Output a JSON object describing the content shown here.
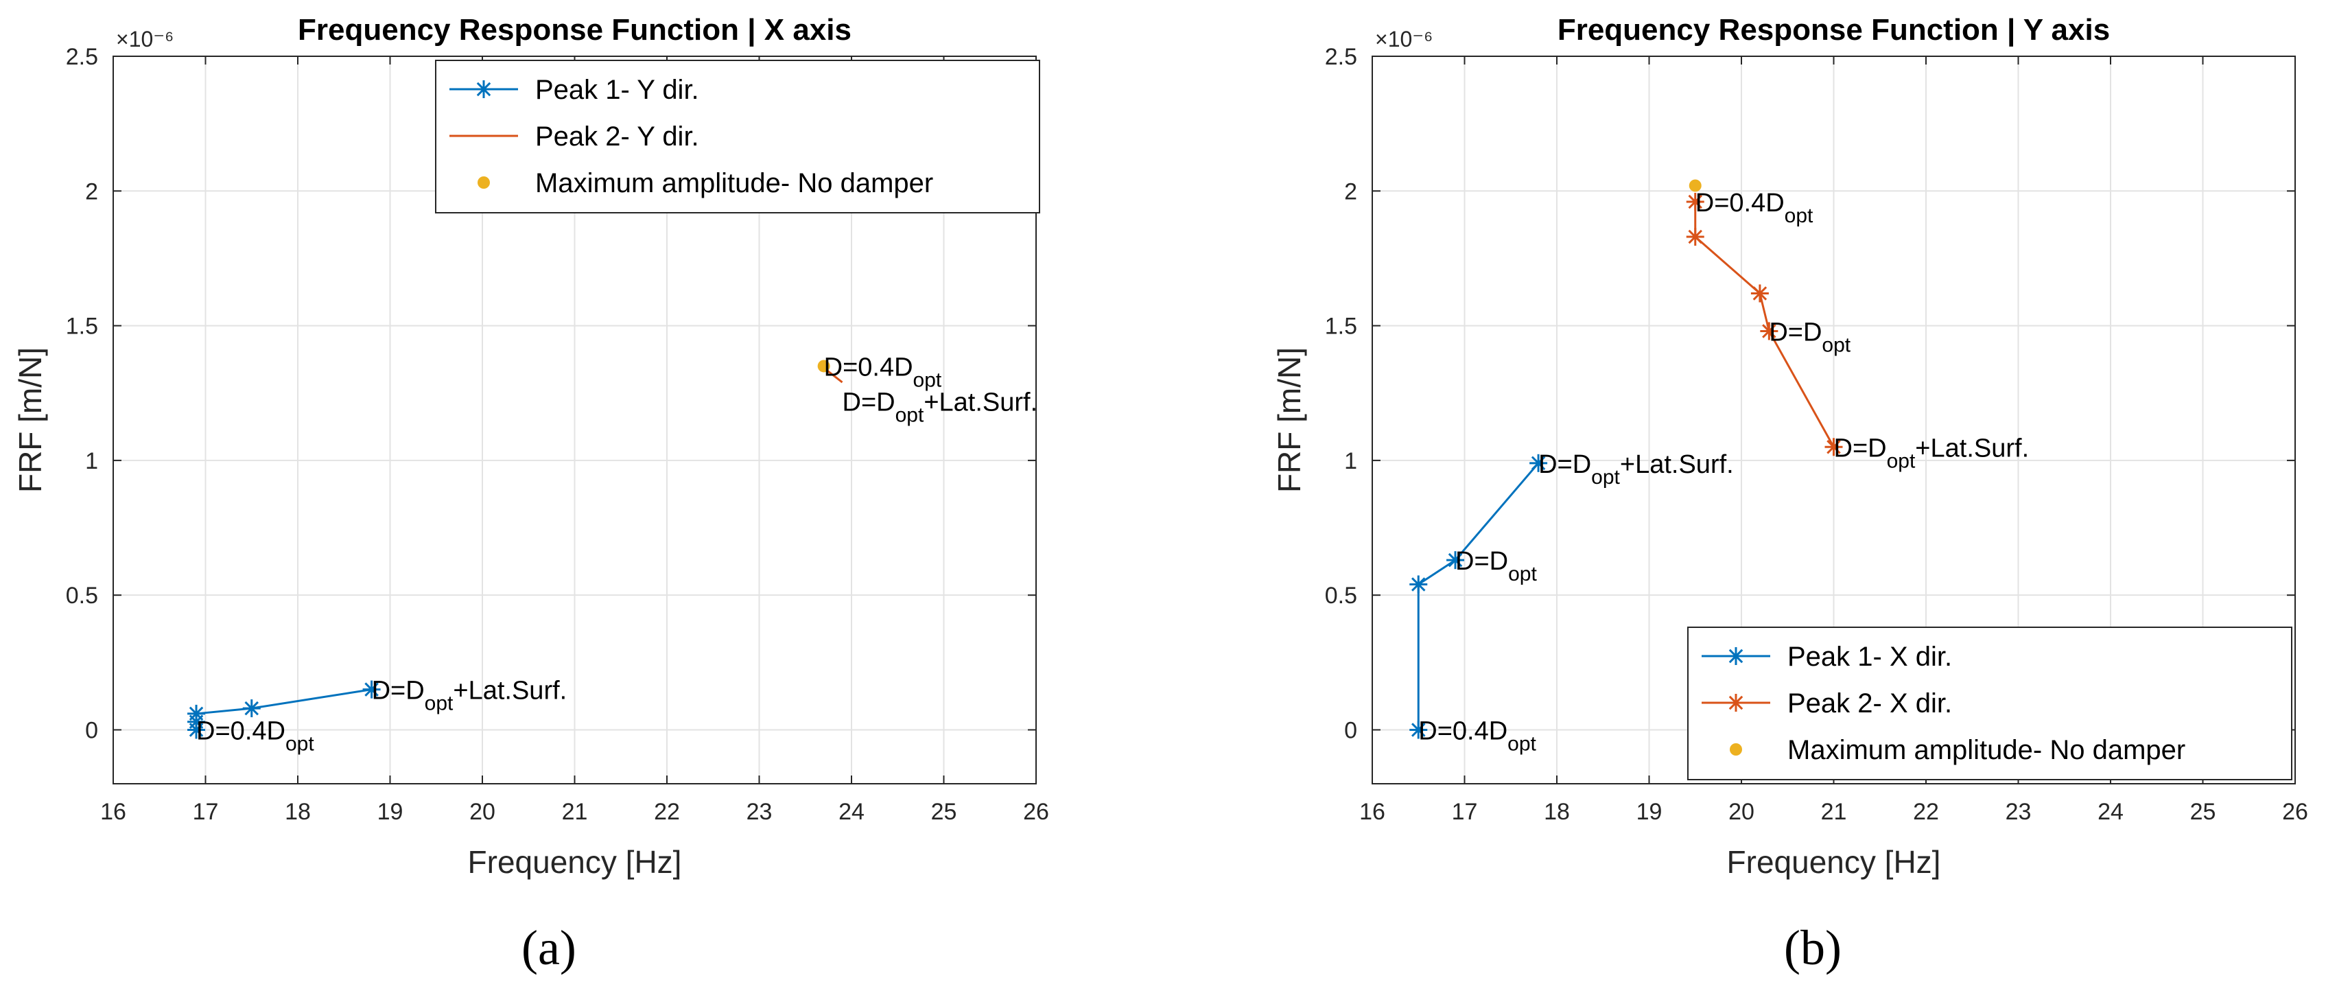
{
  "chart_data": [
    {
      "type": "line",
      "title": "Frequency Response Function | X axis",
      "xlabel": "Frequency [Hz]",
      "ylabel": "FRF [m/N]",
      "y_exponent": "×10⁻⁶",
      "xlim": [
        16,
        26
      ],
      "ylim": [
        -0.2,
        2.5
      ],
      "xticks": [
        16,
        17,
        18,
        19,
        20,
        21,
        22,
        23,
        24,
        25,
        26
      ],
      "yticks": [
        0,
        0.5,
        1,
        1.5,
        2,
        2.5
      ],
      "ytick_labels": [
        "0",
        "0.5",
        "1",
        "1.5",
        "2",
        "2.5"
      ],
      "grid": true,
      "legend_position": "top-right",
      "series": [
        {
          "name": "Peak 1- Y dir.",
          "style": "line-star",
          "color": "#0072BD",
          "x": [
            16.9,
            16.9,
            16.9,
            17.5,
            18.8
          ],
          "y": [
            0,
            0.03,
            0.06,
            0.08,
            0.15
          ]
        },
        {
          "name": "Peak 2- Y dir.",
          "style": "line",
          "color": "#D95319",
          "x": [
            23.7,
            23.75,
            23.9
          ],
          "y": [
            1.35,
            1.33,
            1.29
          ]
        },
        {
          "name": "Maximum amplitude- No damper",
          "style": "dot",
          "color": "#EDB120",
          "x": [
            23.7
          ],
          "y": [
            1.35
          ]
        }
      ],
      "annotations": [
        {
          "x": 16.9,
          "y": 0,
          "base": "D=0.4D",
          "sub": "opt",
          "suffix": "",
          "dy": 0
        },
        {
          "x": 18.8,
          "y": 0.15,
          "base": "D=D",
          "sub": "opt",
          "suffix": "+Lat.Surf.",
          "dy": 0
        },
        {
          "x": 23.7,
          "y": 1.35,
          "base": "D=0.4D",
          "sub": "opt",
          "suffix": "",
          "dy": 0
        },
        {
          "x": 23.9,
          "y": 1.22,
          "base": "D=D",
          "sub": "opt",
          "suffix": "+Lat.Surf.",
          "dy": 0
        }
      ],
      "sub_label": "(a)"
    },
    {
      "type": "line",
      "title": "Frequency Response Function | Y axis",
      "xlabel": "Frequency [Hz]",
      "ylabel": "FRF [m/N]",
      "y_exponent": "×10⁻⁶",
      "xlim": [
        16,
        26
      ],
      "ylim": [
        -0.2,
        2.5
      ],
      "xticks": [
        16,
        17,
        18,
        19,
        20,
        21,
        22,
        23,
        24,
        25,
        26
      ],
      "yticks": [
        0,
        0.5,
        1,
        1.5,
        2,
        2.5
      ],
      "ytick_labels": [
        "0",
        "0.5",
        "1",
        "1.5",
        "2",
        "2.5"
      ],
      "grid": true,
      "legend_position": "bottom-right",
      "series": [
        {
          "name": "Peak 1- X dir.",
          "style": "line-star",
          "color": "#0072BD",
          "x": [
            16.5,
            16.5,
            16.9,
            17.8
          ],
          "y": [
            0,
            0.54,
            0.63,
            0.99
          ]
        },
        {
          "name": "Peak 2- X dir.",
          "style": "line-star",
          "color": "#D95319",
          "x": [
            19.5,
            19.5,
            20.2,
            20.3,
            21.0
          ],
          "y": [
            1.96,
            1.83,
            1.62,
            1.48,
            1.05
          ]
        },
        {
          "name": "Maximum amplitude- No damper",
          "style": "dot",
          "color": "#EDB120",
          "x": [
            19.5
          ],
          "y": [
            2.02
          ]
        }
      ],
      "annotations": [
        {
          "x": 19.5,
          "y": 1.96,
          "base": "D=0.4D",
          "sub": "opt",
          "suffix": "",
          "dy": 0
        },
        {
          "x": 20.3,
          "y": 1.48,
          "base": "D=D",
          "sub": "opt",
          "suffix": "",
          "dy": 0
        },
        {
          "x": 21.0,
          "y": 1.05,
          "base": "D=D",
          "sub": "opt",
          "suffix": "+Lat.Surf.",
          "dy": 0
        },
        {
          "x": 17.8,
          "y": 0.99,
          "base": "D=D",
          "sub": "opt",
          "suffix": "+Lat.Surf.",
          "dy": 0
        },
        {
          "x": 16.9,
          "y": 0.63,
          "base": "D=D",
          "sub": "opt",
          "suffix": "",
          "dy": 0
        },
        {
          "x": 16.5,
          "y": 0,
          "base": "D=0.4D",
          "sub": "opt",
          "suffix": "",
          "dy": 0
        }
      ],
      "sub_label": "(b)"
    }
  ]
}
